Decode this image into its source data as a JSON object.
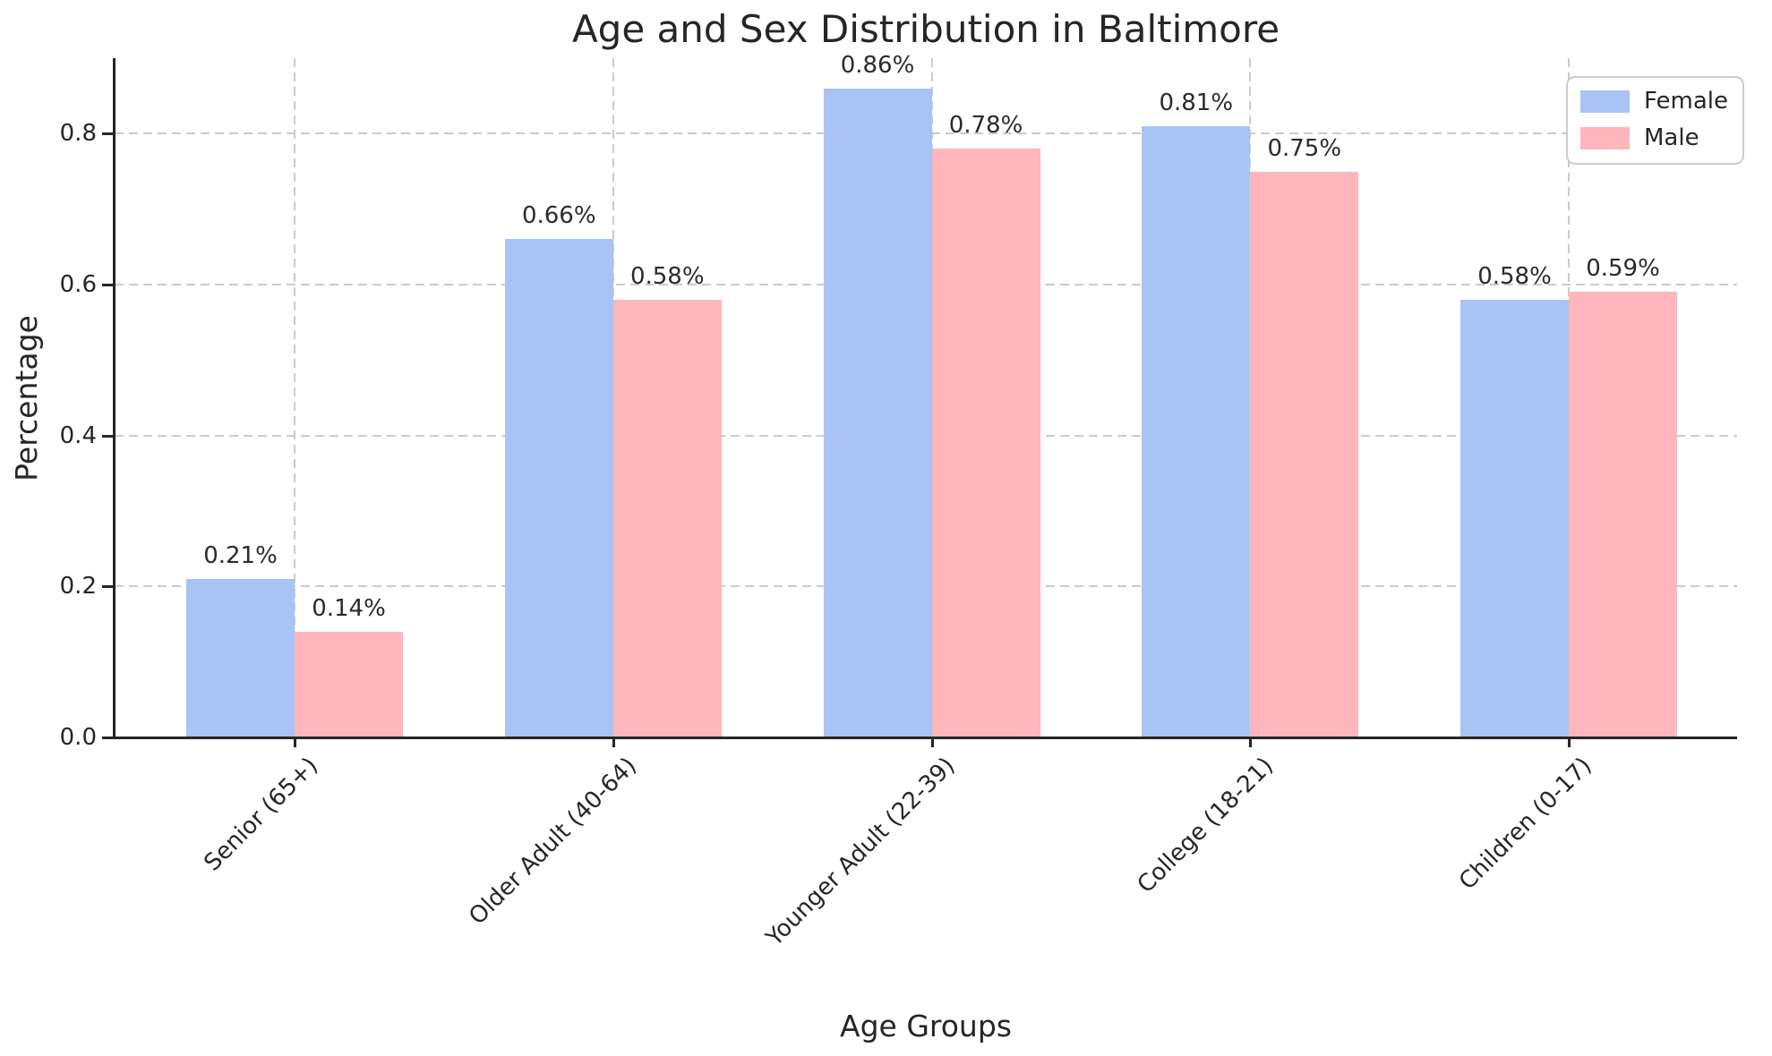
{
  "chart_data": {
    "type": "bar",
    "title": "Age and Sex Distribution in Baltimore",
    "xlabel": "Age Groups",
    "ylabel": "Percentage",
    "categories": [
      "Senior (65+)",
      "Older Adult (40-64)",
      "Younger Adult (22-39)",
      "College (18-21)",
      "Children (0-17)"
    ],
    "series": [
      {
        "name": "Female",
        "color": "#a7c4f5",
        "values": [
          0.21,
          0.66,
          0.86,
          0.81,
          0.58
        ],
        "labels": [
          "0.21%",
          "0.66%",
          "0.86%",
          "0.81%",
          "0.58%"
        ]
      },
      {
        "name": "Male",
        "color": "#ffb6bc",
        "values": [
          0.14,
          0.58,
          0.78,
          0.75,
          0.59
        ],
        "labels": [
          "0.14%",
          "0.58%",
          "0.78%",
          "0.75%",
          "0.59%"
        ]
      }
    ],
    "ylim": [
      0,
      0.9
    ],
    "yticks": [
      0.0,
      0.2,
      0.4,
      0.6,
      0.8
    ],
    "ytick_labels": [
      "0.0",
      "0.2",
      "0.4",
      "0.6",
      "0.8"
    ],
    "grid": "dashed",
    "legend_position": "upper right"
  },
  "colors": {
    "female_bar": "#a7c4f5",
    "male_bar": "#ffb6bc",
    "gridline": "#cbcbcb",
    "spine": "#262626",
    "text": "#262626",
    "legend_border": "#cccccc",
    "background": "#ffffff"
  }
}
